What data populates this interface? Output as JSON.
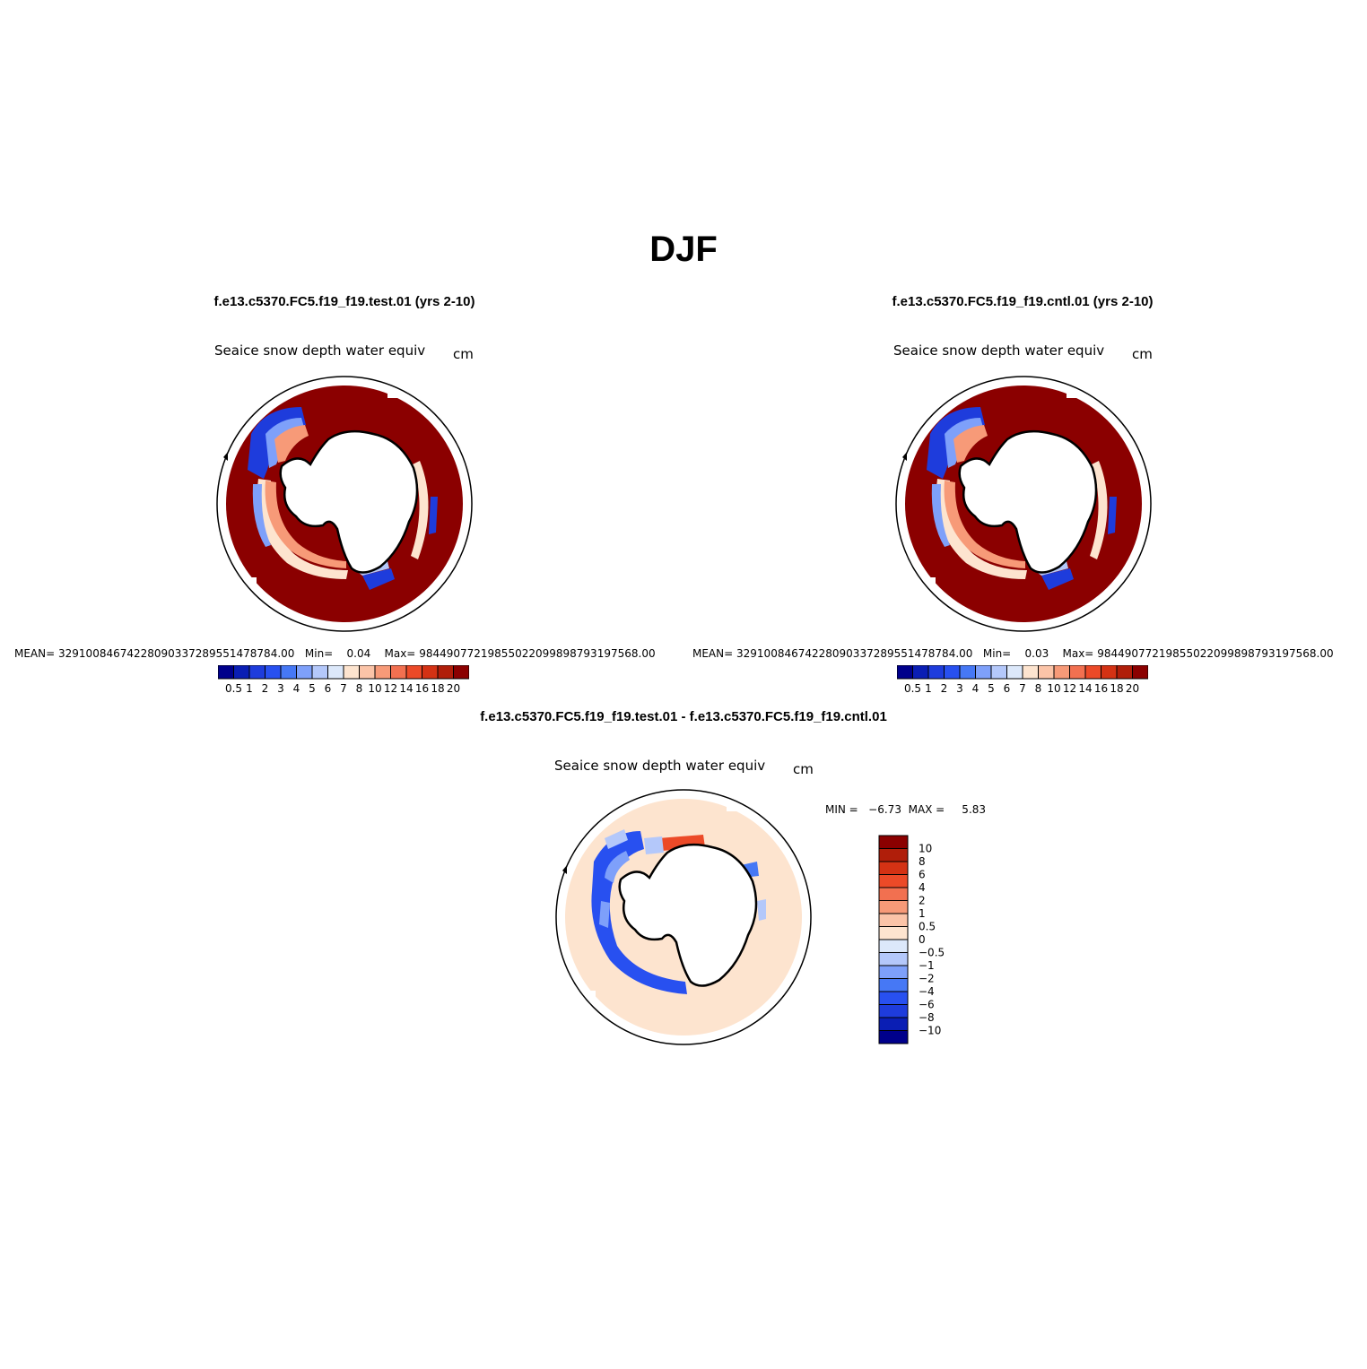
{
  "title": "DJF",
  "panels": [
    {
      "case_title": "f.e13.c5370.FC5.f19_f19.test.01 (yrs 2-10)",
      "variable": "Seaice snow depth water equiv",
      "units": "cm",
      "mean_label": "MEAN=",
      "mean_value": "329100846742280903372895514787 84.00",
      "min_label": "Min=",
      "min_value": "0.04",
      "max_label": "Max=",
      "max_value": "9844907721985502209989879319 7568.00"
    },
    {
      "case_title": "f.e13.c5370.FC5.f19_f19.cntl.01 (yrs 2-10)",
      "variable": "Seaice snow depth water equiv",
      "units": "cm",
      "mean_label": "MEAN=",
      "mean_value": "329100846742280903372895514787 84.00",
      "min_label": "Min=",
      "min_value": "0.03",
      "max_label": "Max=",
      "max_value": "9844907721985502209989879319 7568.00"
    }
  ],
  "diff_panel": {
    "case_title": "f.e13.c5370.FC5.f19_f19.test.01 - f.e13.c5370.FC5.f19_f19.cntl.01",
    "variable": "Seaice snow depth water equiv",
    "units": "cm",
    "minmax_text": "MIN =   −6.73  MAX =     5.83"
  },
  "colorbar_abs": {
    "labels": [
      "0.5",
      "1",
      "2",
      "3",
      "4",
      "5",
      "6",
      "7",
      "8",
      "10",
      "12",
      "14",
      "16",
      "18",
      "20"
    ],
    "colors": [
      "#00008b",
      "#0a1eb4",
      "#1e3cdc",
      "#2850f0",
      "#4678f5",
      "#7ea0fa",
      "#b4c8fa",
      "#dce8fa",
      "#fde4cf",
      "#fbc4a8",
      "#f79a78",
      "#f27050",
      "#ec4a28",
      "#d43214",
      "#b01e0a",
      "#8b0000"
    ]
  },
  "colorbar_diff": {
    "labels": [
      "10",
      "8",
      "6",
      "4",
      "2",
      "1",
      "0.5",
      "0",
      "−0.5",
      "−1",
      "−2",
      "−4",
      "−6",
      "−8",
      "−10"
    ],
    "colors": [
      "#8b0000",
      "#b01e0a",
      "#d43214",
      "#ec4a28",
      "#f27050",
      "#f79a78",
      "#fbc4a8",
      "#fde4cf",
      "#dce8fa",
      "#b4c8fa",
      "#7ea0fa",
      "#4678f5",
      "#2850f0",
      "#1e3cdc",
      "#0a1eb4",
      "#00008b"
    ]
  }
}
